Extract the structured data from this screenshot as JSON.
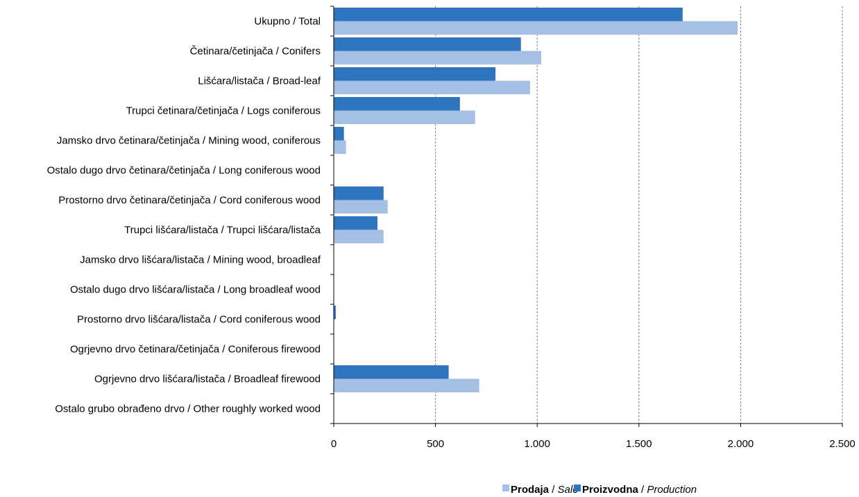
{
  "chart_data": {
    "type": "bar",
    "orientation": "horizontal",
    "title": "",
    "xlabel": "",
    "ylabel": "",
    "xlim": [
      0,
      2500
    ],
    "x_ticks": [
      0,
      500,
      1000,
      1500,
      2000,
      2500
    ],
    "x_tick_labels": [
      "0",
      "500",
      "1.000",
      "1.500",
      "2.000",
      "2.500"
    ],
    "grid": "vertical dashed",
    "legend_position": "bottom",
    "categories": [
      "Ukupno / Total",
      "Četinara/četinjača / Conifers",
      "Lišćara/listača / Broad-leaf",
      "Trupci četinara/četinjača / Logs coniferous",
      "Jamsko drvo četinara/četinjača / Mining wood, coniferous",
      "Ostalo dugo drvo četinara/četinjača / Long coniferous wood",
      "Prostorno drvo četinara/četinjača / Cord coniferous wood",
      "Trupci lišćara/listača / Trupci lišćara/listača",
      "Jamsko drvo lišćara/listača / Mining wood, broadleaf",
      "Ostalo dugo drvo lišćara/listača / Long broadleaf wood",
      "Prostorno drvo lišćara/listača / Cord coniferous wood",
      "Ogrjevno drvo četinara/četinjača / Coniferous firewood",
      "Ogrjevno drvo lišćara/listača / Broadleaf firewood",
      "Ostalo grubo obrađeno drvo / Other roughly worked wood"
    ],
    "series": [
      {
        "name": "Proizvodna / Production",
        "name_bold": "Proizvodna",
        "name_italic": "Production",
        "color": "#2e75c0",
        "values": [
          1715,
          920,
          795,
          620,
          50,
          0,
          245,
          215,
          0,
          0,
          10,
          0,
          565,
          0
        ]
      },
      {
        "name": "Prodaja / Sale",
        "name_bold": "Prodaja",
        "name_italic": "Sale",
        "color": "#a6bfe4",
        "values": [
          1985,
          1020,
          965,
          695,
          60,
          0,
          265,
          245,
          0,
          0,
          0,
          0,
          715,
          0
        ]
      }
    ],
    "legend_order": [
      1,
      0
    ]
  }
}
